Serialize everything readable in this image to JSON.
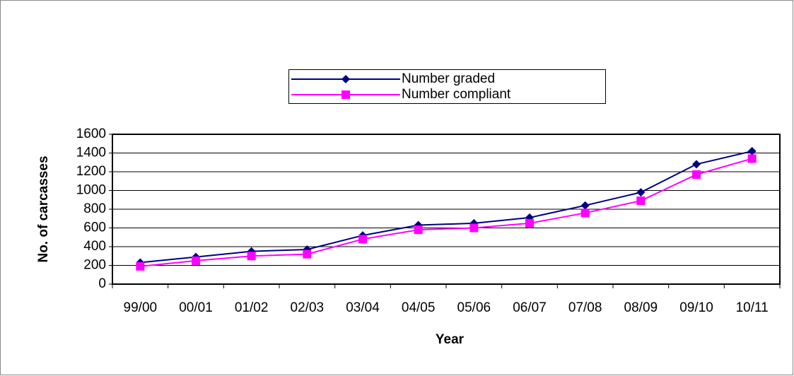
{
  "chart_data": {
    "type": "line",
    "x_label": "Year",
    "y_label": "No. of carcasses",
    "categories": [
      "99/00",
      "00/01",
      "01/02",
      "02/03",
      "03/04",
      "04/05",
      "05/06",
      "06/07",
      "07/08",
      "08/09",
      "09/10",
      "10/11"
    ],
    "series": [
      {
        "name": "Number graded",
        "color": "#000080",
        "marker": "diamond",
        "values": [
          230,
          290,
          350,
          370,
          520,
          630,
          650,
          710,
          840,
          980,
          1280,
          1420
        ]
      },
      {
        "name": "Number compliant",
        "color": "#ff00ff",
        "marker": "square",
        "values": [
          190,
          250,
          300,
          320,
          480,
          580,
          600,
          650,
          760,
          890,
          1170,
          1340
        ]
      }
    ],
    "ylim": [
      0,
      1600
    ],
    "yticks": [
      0,
      200,
      400,
      600,
      800,
      1000,
      1200,
      1400,
      1600
    ],
    "grid": true
  }
}
